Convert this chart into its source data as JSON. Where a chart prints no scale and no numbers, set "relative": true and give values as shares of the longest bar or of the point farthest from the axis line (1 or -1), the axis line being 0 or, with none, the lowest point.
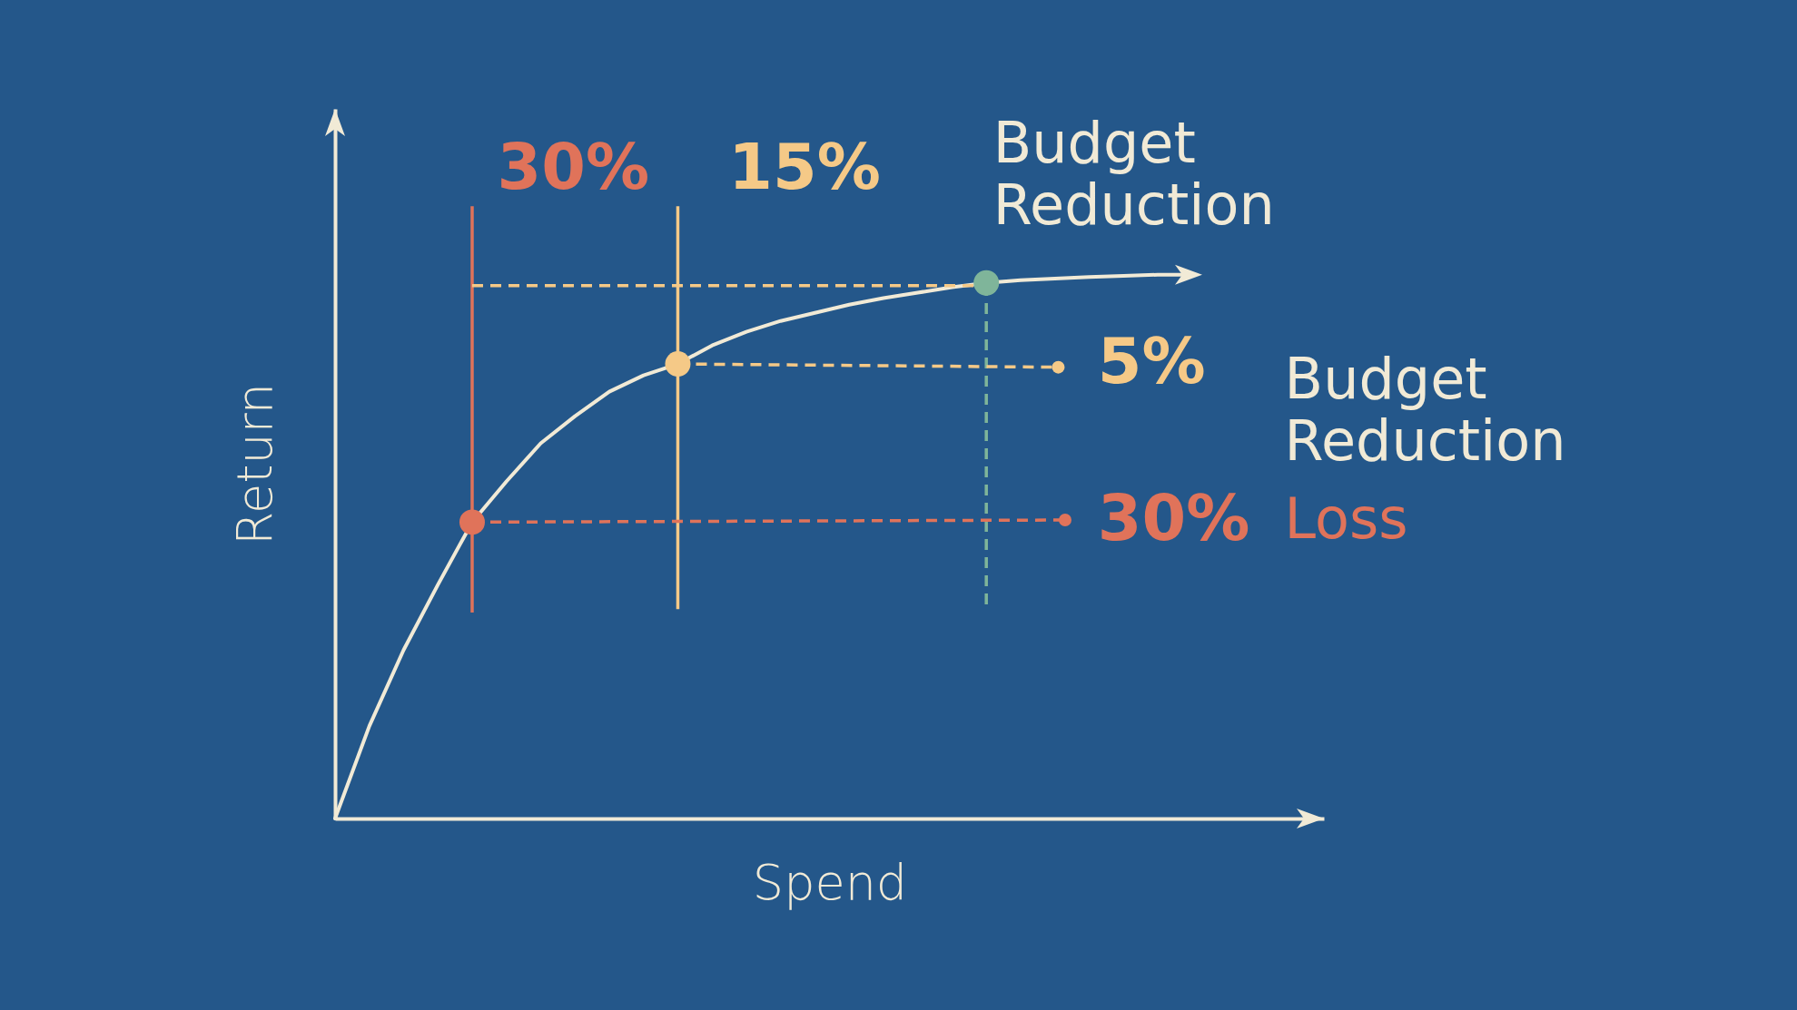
{
  "chart_data": {
    "type": "line",
    "relative": true,
    "xlabel": "Spend",
    "ylabel": "Return",
    "categories": [
      null,
      null,
      null,
      null,
      null,
      null,
      null,
      null,
      null,
      null,
      null,
      null,
      null,
      null,
      null,
      null,
      null,
      null,
      null,
      null,
      null,
      null,
      null,
      null,
      null,
      null
    ],
    "series": [
      {
        "color": "#f1ead6",
        "values": [
          0,
          0.17,
          0.31,
          0.43,
          0.545,
          0.62,
          0.69,
          0.74,
          0.785,
          0.815,
          0.836,
          0.87,
          0.895,
          0.915,
          0.93,
          0.945,
          0.957,
          0.967,
          0.977,
          0.985,
          0.99,
          0.993,
          0.996,
          0.998,
          1,
          1
        ]
      }
    ],
    "annotations": [
      "30%",
      "15%",
      "Budget Reduction",
      "5%",
      "Budget Reduction",
      "30%",
      "Loss"
    ]
  }
}
